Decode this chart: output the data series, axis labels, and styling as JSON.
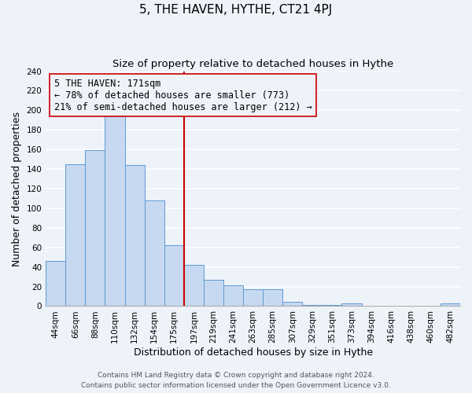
{
  "title": "5, THE HAVEN, HYTHE, CT21 4PJ",
  "subtitle": "Size of property relative to detached houses in Hythe",
  "xlabel": "Distribution of detached houses by size in Hythe",
  "ylabel": "Number of detached properties",
  "bar_labels": [
    "44sqm",
    "66sqm",
    "88sqm",
    "110sqm",
    "132sqm",
    "154sqm",
    "175sqm",
    "197sqm",
    "219sqm",
    "241sqm",
    "263sqm",
    "285sqm",
    "307sqm",
    "329sqm",
    "351sqm",
    "373sqm",
    "394sqm",
    "416sqm",
    "438sqm",
    "460sqm",
    "482sqm"
  ],
  "bar_values": [
    46,
    145,
    159,
    201,
    144,
    108,
    62,
    42,
    27,
    21,
    17,
    17,
    4,
    1,
    1,
    3,
    0,
    0,
    0,
    0,
    3
  ],
  "bar_color": "#c6d9f0",
  "bar_edge_color": "#5b9bd5",
  "vline_index": 6,
  "vline_color": "#cc0000",
  "annotation_line1": "5 THE HAVEN: 171sqm",
  "annotation_line2": "← 78% of detached houses are smaller (773)",
  "annotation_line3": "21% of semi-detached houses are larger (212) →",
  "annotation_box_edge": "#cc0000",
  "ylim": [
    0,
    240
  ],
  "yticks": [
    0,
    20,
    40,
    60,
    80,
    100,
    120,
    140,
    160,
    180,
    200,
    220,
    240
  ],
  "footer1": "Contains HM Land Registry data © Crown copyright and database right 2024.",
  "footer2": "Contains public sector information licensed under the Open Government Licence v3.0.",
  "background_color": "#eef2f9",
  "grid_color": "#ffffff",
  "title_fontsize": 11,
  "subtitle_fontsize": 9.5,
  "axis_label_fontsize": 9,
  "tick_fontsize": 7.5,
  "annotation_fontsize": 8.5,
  "footer_fontsize": 6.5
}
